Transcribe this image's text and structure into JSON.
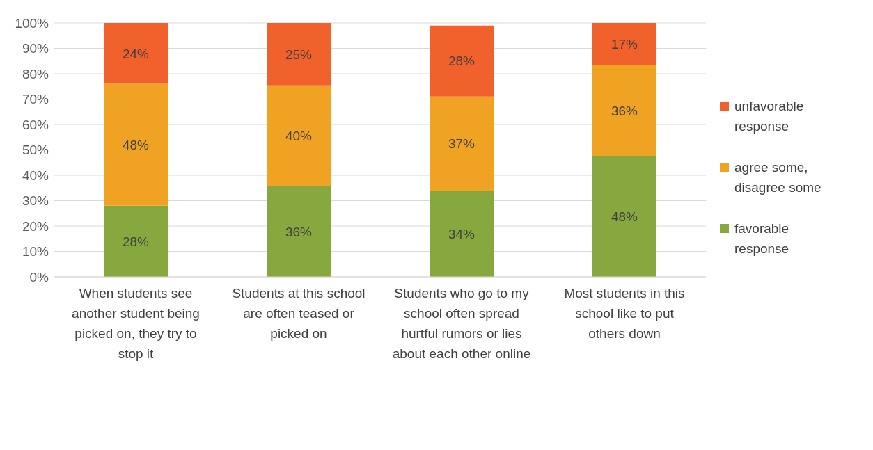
{
  "chart_data": {
    "type": "bar",
    "stacked": true,
    "categories": [
      "When students see another student being picked on, they try to stop it",
      "Students at this school are often teased or picked on",
      "Students who go to my school often spread hurtful rumors or lies about each other online",
      "Most students in this school like to put others down"
    ],
    "series": [
      {
        "name": "favorable response",
        "color": "#86a83e",
        "values": [
          28,
          35.6,
          34,
          47.6
        ],
        "value_labels": [
          "28%",
          "36%",
          "34%",
          "48%"
        ]
      },
      {
        "name": "agree some, disagree some",
        "color": "#f0a223",
        "values": [
          48,
          39.8,
          37,
          35.8
        ],
        "value_labels": [
          "48%",
          "40%",
          "37%",
          "36%"
        ]
      },
      {
        "name": "unfavorable response",
        "color": "#f0612b",
        "values": [
          24,
          24.6,
          28,
          16.6
        ],
        "value_labels": [
          "24%",
          "25%",
          "28%",
          "17%"
        ]
      }
    ],
    "ylim": [
      0,
      100
    ],
    "yticks": [
      {
        "value": 0,
        "label": "0%"
      },
      {
        "value": 10,
        "label": "10%"
      },
      {
        "value": 20,
        "label": "20%"
      },
      {
        "value": 30,
        "label": "30%"
      },
      {
        "value": 40,
        "label": "40%"
      },
      {
        "value": 50,
        "label": "50%"
      },
      {
        "value": 60,
        "label": "60%"
      },
      {
        "value": 70,
        "label": "70%"
      },
      {
        "value": 80,
        "label": "80%"
      },
      {
        "value": 90,
        "label": "90%"
      },
      {
        "value": 100,
        "label": "100%"
      }
    ],
    "grid": "y",
    "legend": "right"
  }
}
